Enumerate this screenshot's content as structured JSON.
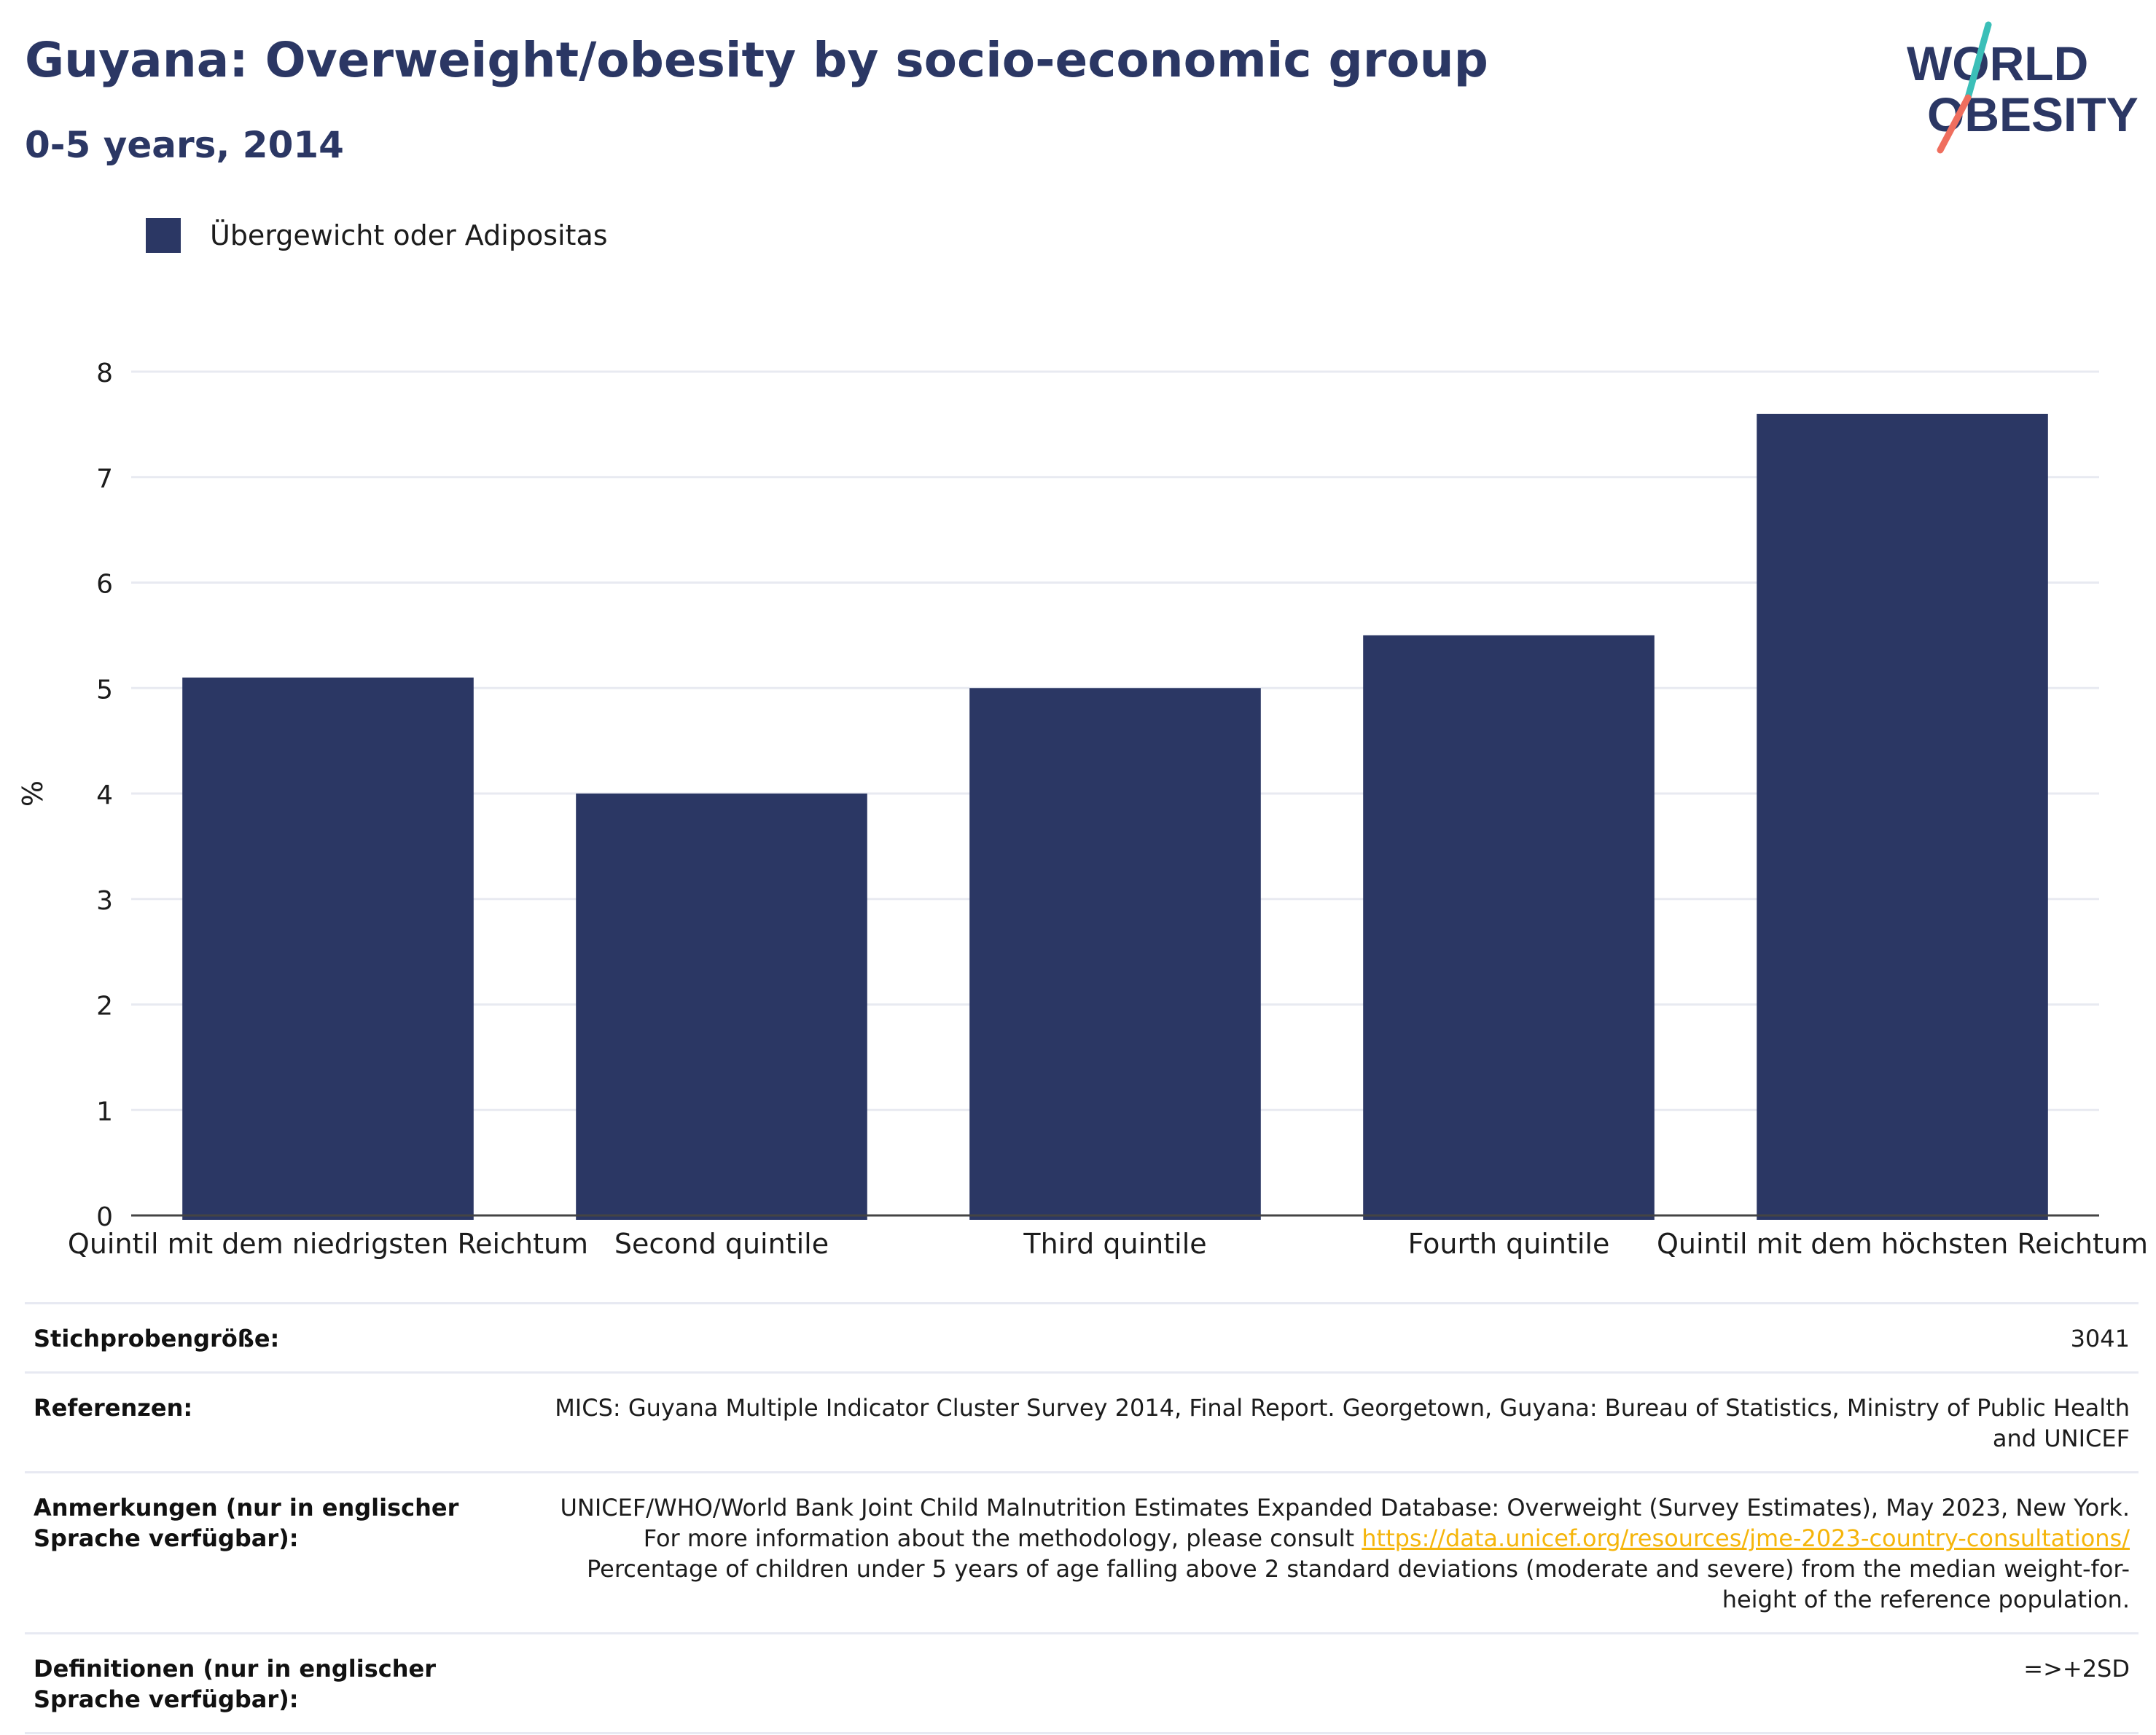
{
  "header": {
    "title": "Guyana: Overweight/obesity by socio-economic group",
    "subtitle": "0-5 years, 2014"
  },
  "logo": {
    "line1": "WORLD",
    "line2": "OBESITY",
    "colors": {
      "text": "#2b3764",
      "accent_teal": "#3bbfb8",
      "accent_coral": "#ef6e5e"
    }
  },
  "legend": {
    "label": "Übergewicht oder Adipositas",
    "color": "#2b3764"
  },
  "chart_data": {
    "type": "bar",
    "categories": [
      "Quintil mit dem niedrigsten Reichtum",
      "Second quintile",
      "Third quintile",
      "Fourth quintile",
      "Quintil mit dem höchsten Reichtum"
    ],
    "series": [
      {
        "name": "Übergewicht oder Adipositas",
        "values": [
          5.1,
          4.0,
          5.0,
          5.5,
          7.6
        ],
        "color": "#2b3764"
      }
    ],
    "ylabel": "%",
    "ylim": [
      0,
      8
    ],
    "yticks": [
      0,
      1,
      2,
      3,
      4,
      5,
      6,
      7,
      8
    ],
    "grid": true,
    "legend_position": "top-left"
  },
  "meta": {
    "sample_size": {
      "label": "Stichprobengröße:",
      "value": "3041"
    },
    "references": {
      "label": "Referenzen:",
      "value": "MICS: Guyana Multiple Indicator Cluster Survey 2014, Final Report. Georgetown, Guyana: Bureau of Statistics, Ministry of Public Health and UNICEF"
    },
    "notes": {
      "label": "Anmerkungen (nur in englischer Sprache verfügbar):",
      "text_before": "UNICEF/WHO/World Bank Joint Child Malnutrition Estimates Expanded Database: Overweight (Survey Estimates), May 2023, New York. For more information about the methodology, please consult",
      "link": "https://data.unicef.org/resources/jme-2023-country-consultations/",
      "text_after": "Percentage of children under 5 years of age falling above 2 standard deviations (moderate and severe) from the median weight-for-height of the reference population."
    },
    "definitions": {
      "label": "Definitionen (nur in englischer Sprache verfügbar):",
      "value": "=>+2SD"
    }
  }
}
